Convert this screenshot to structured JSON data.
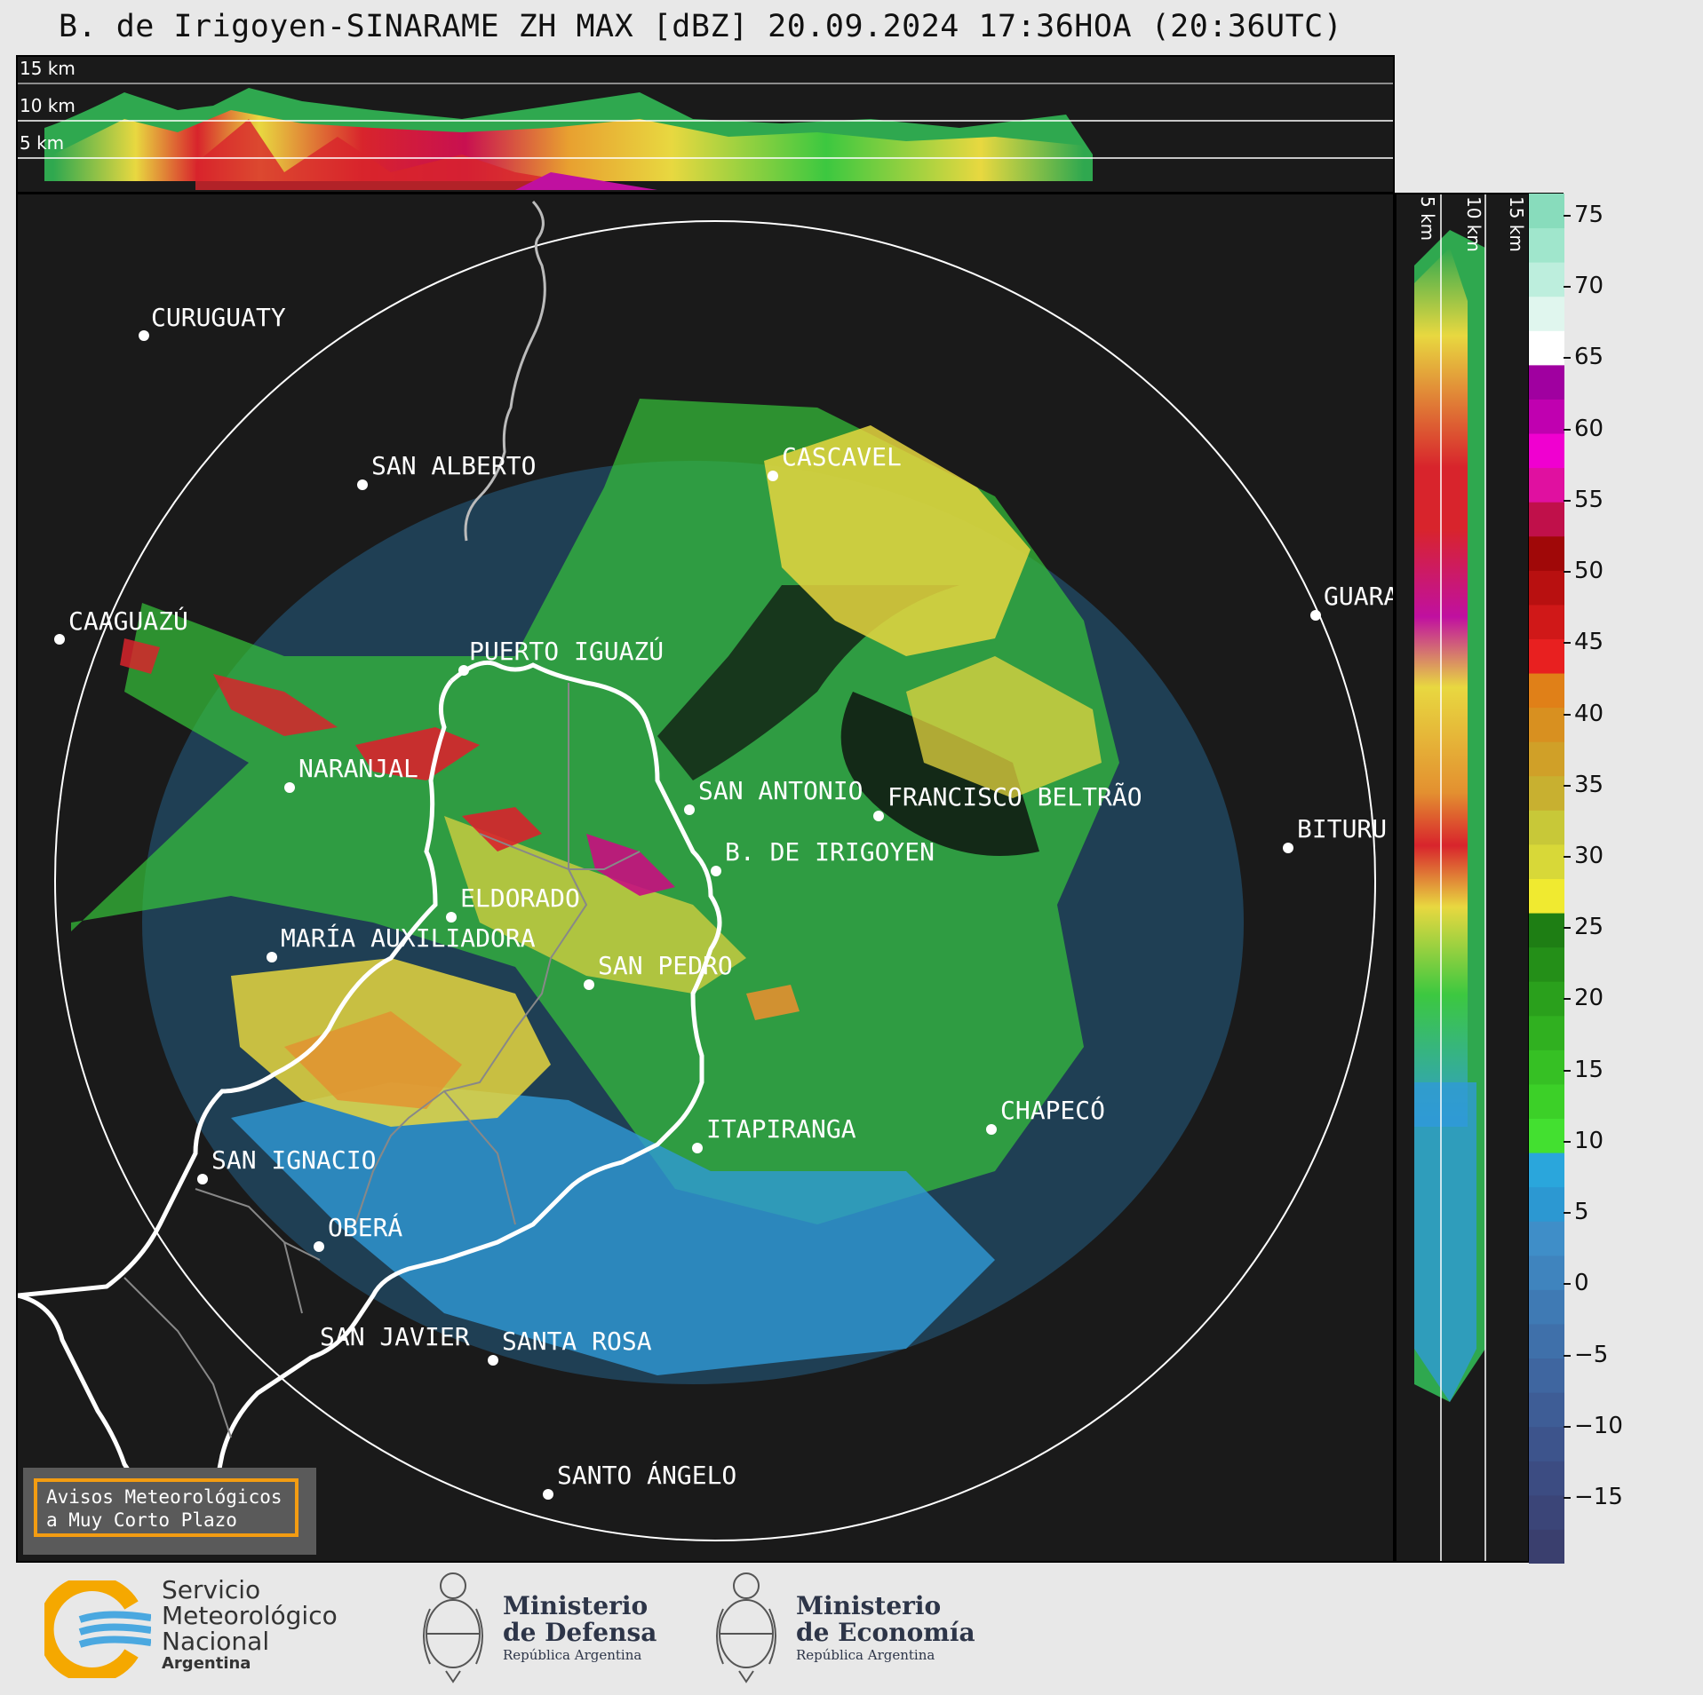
{
  "title": "B. de Irigoyen-SINARAME ZH MAX [dBZ] 20.09.2024 17:36HOA (20:36UTC)",
  "top_panel": {
    "altitude_labels": [
      "15 km",
      "10 km",
      "5 km"
    ]
  },
  "side_panel": {
    "altitude_labels": [
      "5 km",
      "10 km",
      "15 km"
    ]
  },
  "cities": [
    {
      "name": "CURUGUATY"
    },
    {
      "name": "SAN ALBERTO"
    },
    {
      "name": "CASCAVEL"
    },
    {
      "name": "CAAGUAZÚ"
    },
    {
      "name": "GUARA"
    },
    {
      "name": "PUERTO IGUAZÚ"
    },
    {
      "name": "NARANJAL"
    },
    {
      "name": "SAN ANTONIO"
    },
    {
      "name": "FRANCISCO BELTRÃO"
    },
    {
      "name": "BITURU"
    },
    {
      "name": "B. DE IRIGOYEN"
    },
    {
      "name": "ELDORADO"
    },
    {
      "name": "MARÍA AUXILIADORA"
    },
    {
      "name": "SAN PEDRO"
    },
    {
      "name": "CHAPECÓ"
    },
    {
      "name": "ITAPIRANGA"
    },
    {
      "name": "SAN IGNACIO"
    },
    {
      "name": "OBERÁ"
    },
    {
      "name": "SAN JAVIER"
    },
    {
      "name": "SANTA ROSA"
    },
    {
      "name": "SANTO ÁNGELO"
    }
  ],
  "colorbar": {
    "unit": "dBZ",
    "ticks": [
      "75",
      "70",
      "65",
      "60",
      "55",
      "50",
      "45",
      "40",
      "35",
      "30",
      "25",
      "20",
      "15",
      "10",
      "5",
      "0",
      "−5",
      "−10",
      "−15"
    ]
  },
  "notice": {
    "line1": "Avisos Meteorológicos",
    "line2": "a Muy Corto Plazo"
  },
  "footer": {
    "smn": {
      "line1": "Servicio",
      "line2": "Meteorológico",
      "line3": "Nacional",
      "line4": "Argentina"
    },
    "defensa": {
      "line1": "Ministerio",
      "line2": "de Defensa",
      "line3": "República Argentina"
    },
    "economia": {
      "line1": "Ministerio",
      "line2": "de Economía",
      "line3": "República Argentina"
    }
  }
}
